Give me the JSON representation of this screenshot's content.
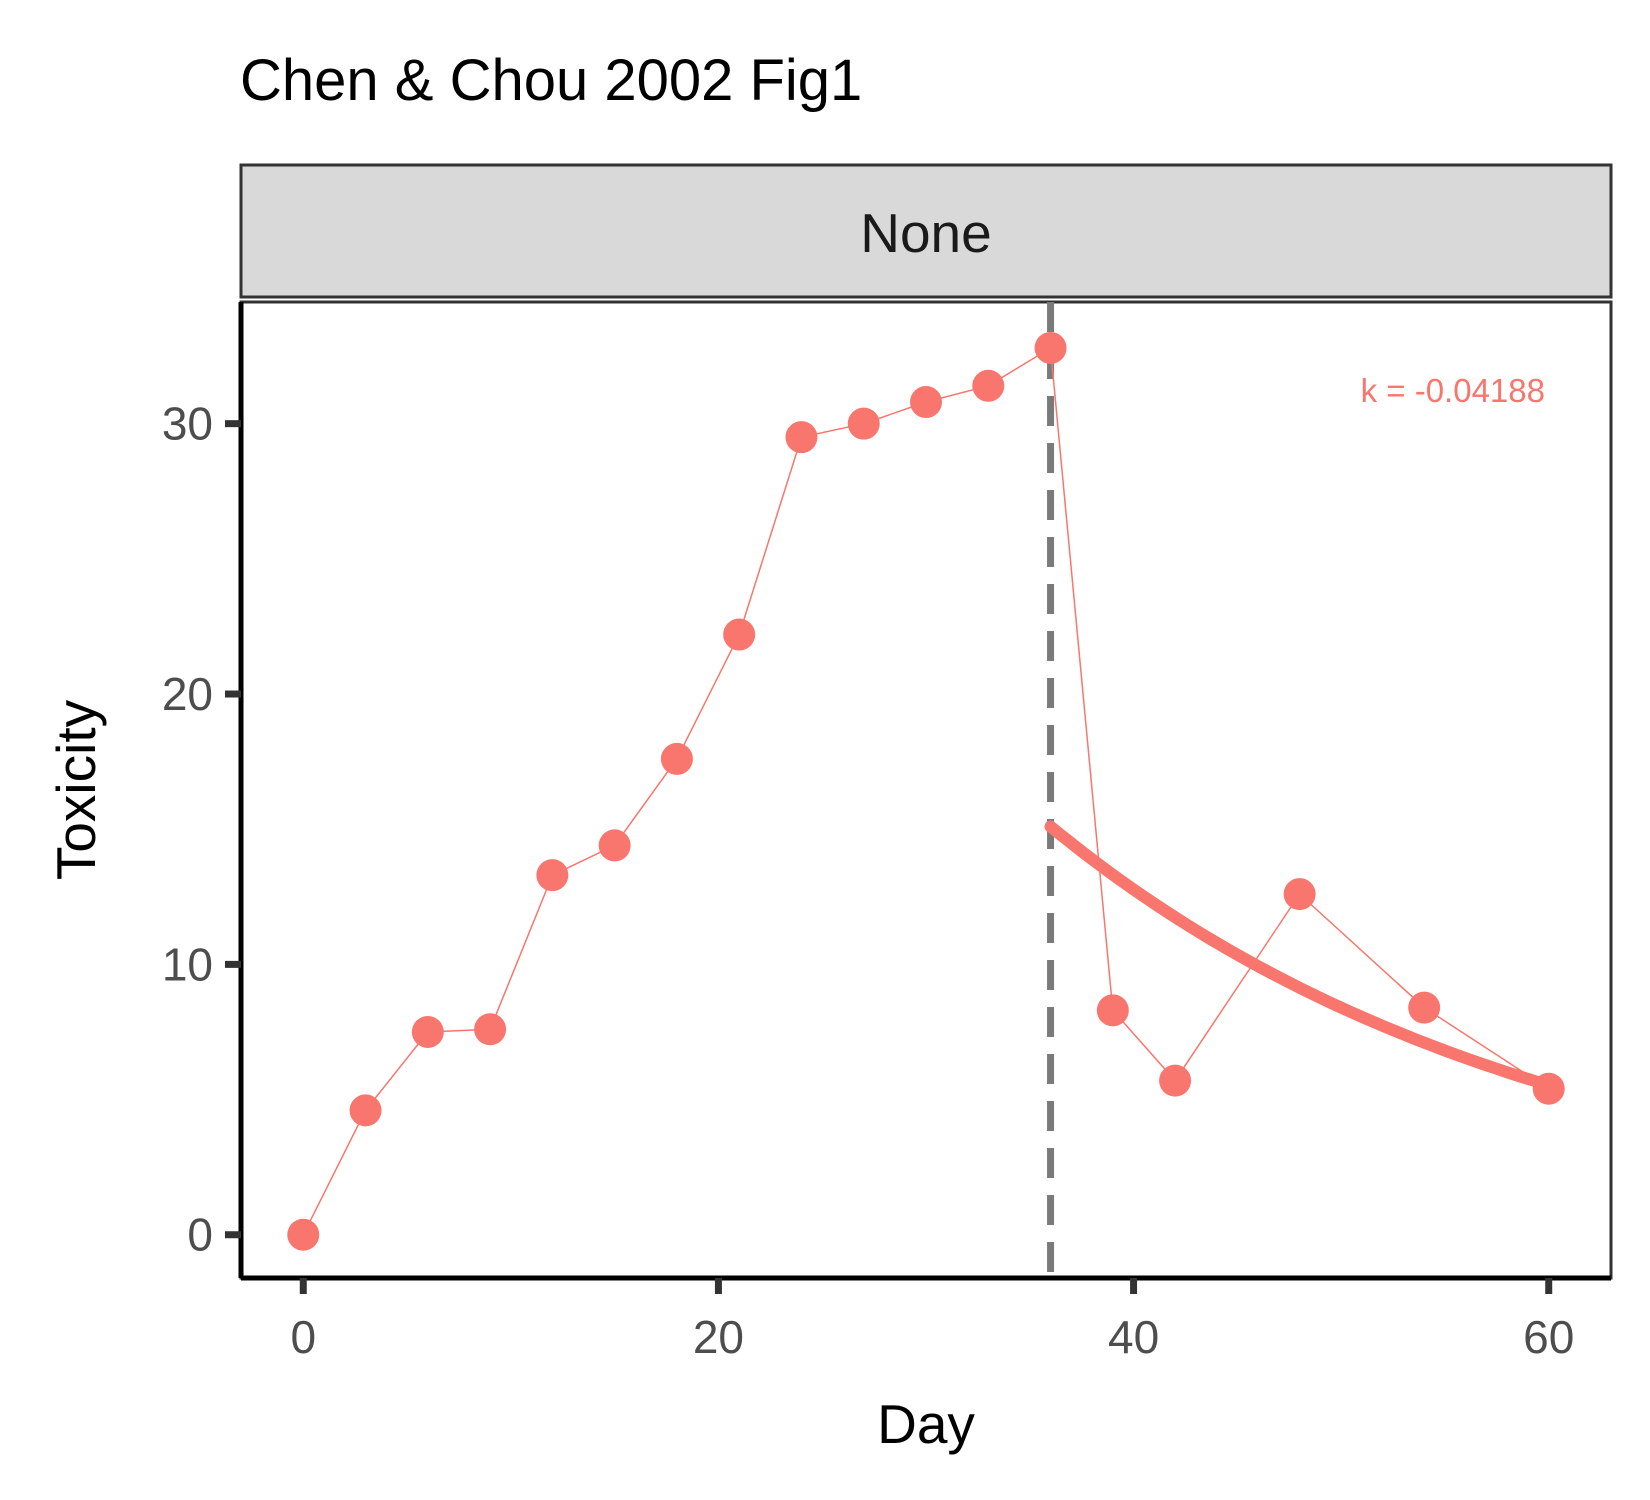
{
  "chart_data": {
    "type": "line",
    "title": "Chen & Chou 2002 Fig1",
    "facet_label": "None",
    "xlabel": "Day",
    "ylabel": "Toxicity",
    "xlim": [
      -3,
      63
    ],
    "ylim": [
      -1.6,
      34.5
    ],
    "xticks": [
      0,
      20,
      40,
      60
    ],
    "yticks": [
      0,
      10,
      20,
      30
    ],
    "grid": false,
    "series": [
      {
        "x": [
          0,
          3,
          6,
          9,
          12,
          15,
          18,
          21,
          24,
          27,
          30,
          33,
          36,
          39,
          42,
          48,
          54,
          60
        ],
        "y": [
          0,
          4.6,
          7.5,
          7.6,
          13.3,
          14.4,
          17.6,
          22.2,
          29.5,
          30.0,
          30.8,
          31.4,
          32.8,
          8.3,
          5.7,
          12.6,
          8.4,
          5.4
        ]
      }
    ],
    "vline": {
      "x": 36,
      "style": "dashed",
      "color": "#7a7a7a"
    },
    "fit": {
      "x_start": 36,
      "x_end": 60,
      "y_start": 15.1,
      "k": -0.04188
    },
    "annotation": "k = -0.04188",
    "colors": {
      "series": "#F8766D",
      "strip_bg": "#D9D9D9",
      "vline": "#7a7a7a"
    }
  }
}
